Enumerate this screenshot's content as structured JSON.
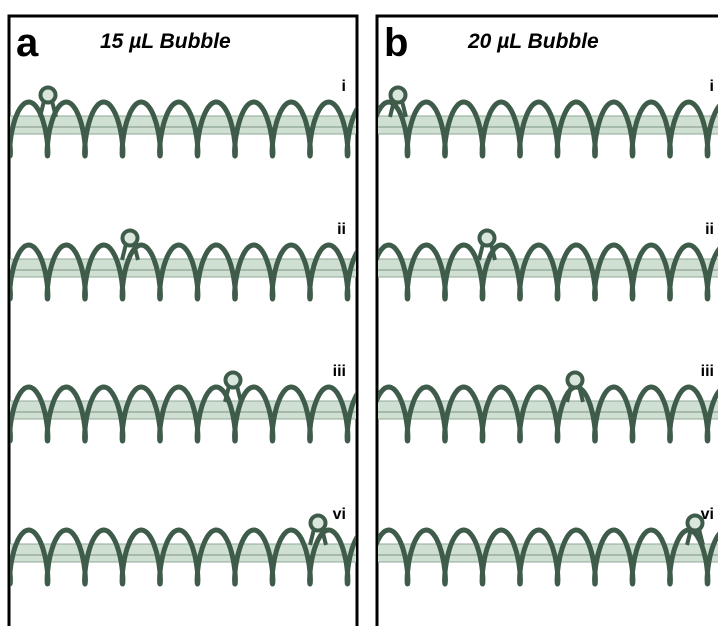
{
  "panels": [
    {
      "letter": "a",
      "title": "15 µL Bubble",
      "rows": [
        "i",
        "ii",
        "iii",
        "vi"
      ]
    },
    {
      "letter": "b",
      "title": "20 µL Bubble",
      "rows": [
        "i",
        "ii",
        "iii",
        "vi"
      ]
    }
  ]
}
